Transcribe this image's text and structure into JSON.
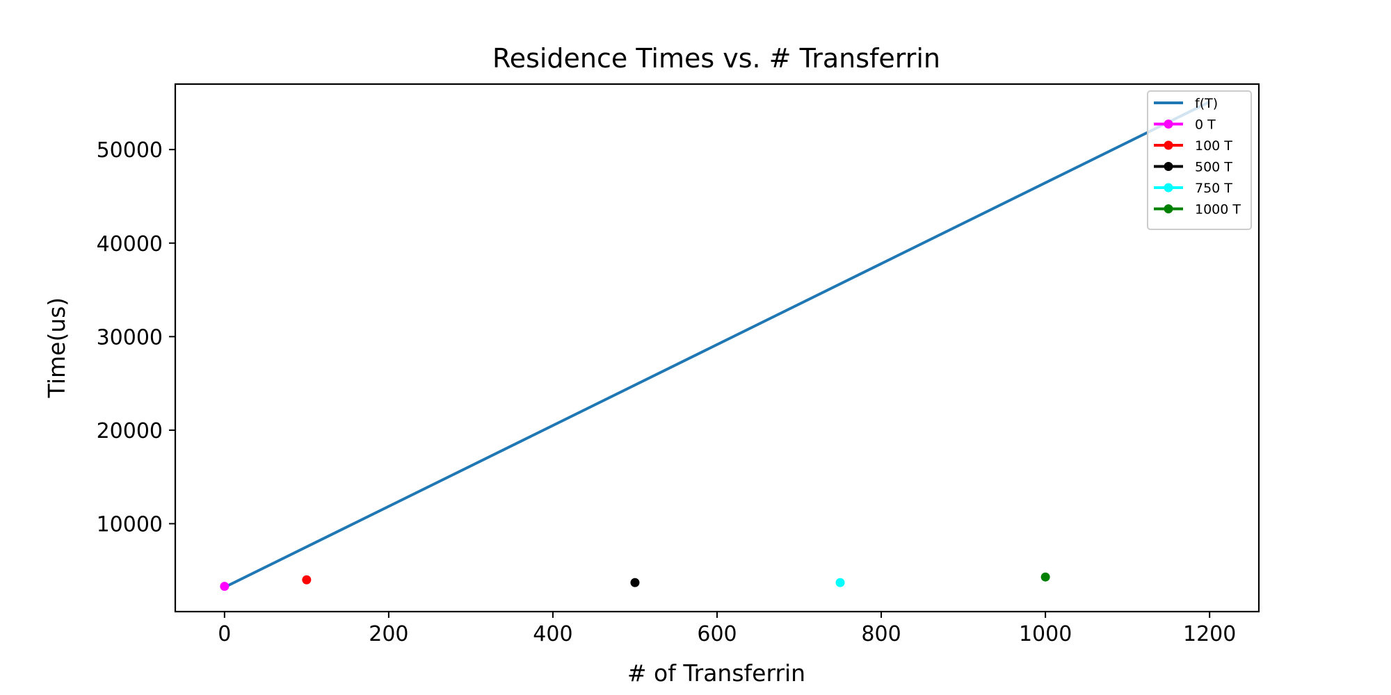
{
  "chart_data": {
    "type": "scatter",
    "title": "Residence Times vs. # Transferrin",
    "xlabel": "# of Transferrin",
    "ylabel": "Time(us)",
    "xlim": [
      -60,
      1260
    ],
    "ylim": [
      600,
      57000
    ],
    "xticks": [
      0,
      200,
      400,
      600,
      800,
      1000,
      1200
    ],
    "yticks": [
      10000,
      20000,
      30000,
      40000,
      50000
    ],
    "grid": false,
    "legend_position": "top-right",
    "series": [
      {
        "name": "f(T)",
        "kind": "line",
        "color": "#1f77b4",
        "x": [
          0,
          1200
        ],
        "y": [
          3200,
          55100
        ]
      },
      {
        "name": "0 T",
        "kind": "point",
        "color": "#ff00ff",
        "x": [
          0
        ],
        "y": [
          3300
        ]
      },
      {
        "name": "100 T",
        "kind": "point",
        "color": "#ff0000",
        "x": [
          100
        ],
        "y": [
          4000
        ]
      },
      {
        "name": "500 T",
        "kind": "point",
        "color": "#000000",
        "x": [
          500
        ],
        "y": [
          3700
        ]
      },
      {
        "name": "750 T",
        "kind": "point",
        "color": "#00ffff",
        "x": [
          750
        ],
        "y": [
          3700
        ]
      },
      {
        "name": "1000 T",
        "kind": "point",
        "color": "#008000",
        "x": [
          1000
        ],
        "y": [
          4300
        ]
      }
    ]
  }
}
